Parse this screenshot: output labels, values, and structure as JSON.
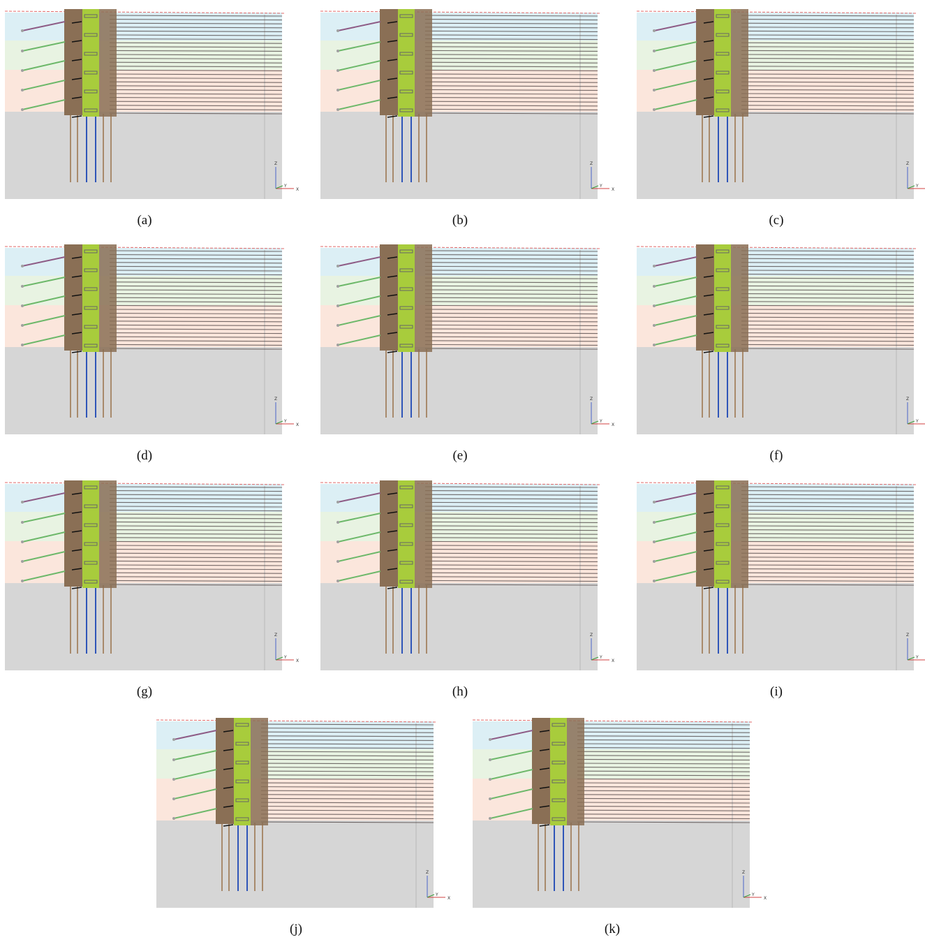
{
  "figure": {
    "panels": [
      {
        "id": "a",
        "caption": "(a)"
      },
      {
        "id": "b",
        "caption": "(b)"
      },
      {
        "id": "c",
        "caption": "(c)"
      },
      {
        "id": "d",
        "caption": "(d)"
      },
      {
        "id": "e",
        "caption": "(e)"
      },
      {
        "id": "f",
        "caption": "(f)"
      },
      {
        "id": "g",
        "caption": "(g)"
      },
      {
        "id": "h",
        "caption": "(h)"
      },
      {
        "id": "i",
        "caption": "(i)"
      },
      {
        "id": "j",
        "caption": "(j)"
      },
      {
        "id": "k",
        "caption": "(k)"
      }
    ],
    "axis_labels": {
      "z": "Z",
      "y": "Y",
      "x": "X"
    },
    "colors": {
      "soil_top": "#dcefF5",
      "soil_mid": "#e8f3e2",
      "soil_low": "#fbe6dc",
      "soil_base": "#d6d6d6",
      "wall_brown": "#8a6f55",
      "wall_green": "#a8cc3c",
      "pile_brown": "#a88a6c",
      "pile_blue": "#2f55b8",
      "anchor_purple": "#8e5c86",
      "anchor_green": "#6db86a",
      "ground_line": "#e06a6a",
      "grid_line": "#4a4040"
    }
  }
}
